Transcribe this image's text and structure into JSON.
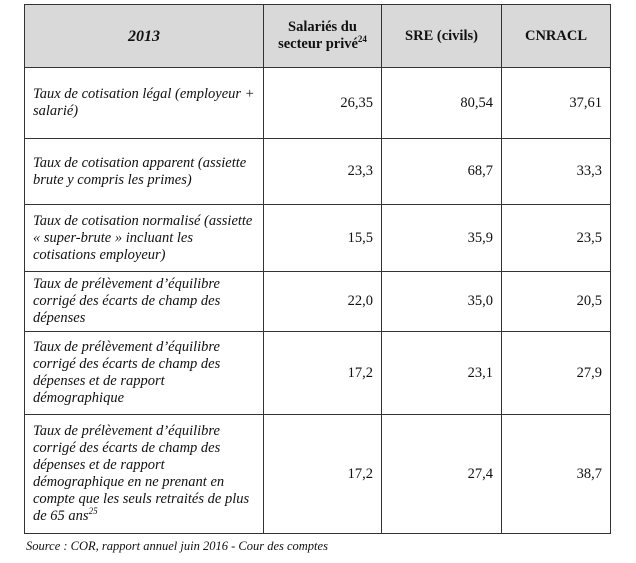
{
  "table": {
    "headers": [
      "2013",
      "Salariés du secteur privé",
      "SRE (civils)",
      "CNRACL"
    ],
    "header_footnote": "24",
    "rows": [
      {
        "label": "Taux de cotisation légal (employeur + salarié)",
        "values": [
          "26,35",
          "80,54",
          "37,61"
        ]
      },
      {
        "label": "Taux de cotisation apparent (assiette brute y compris les primes)",
        "values": [
          "23,3",
          "68,7",
          "33,3"
        ]
      },
      {
        "label": "Taux de cotisation normalisé (assiette « super-brute » incluant les cotisations employeur)",
        "values": [
          "15,5",
          "35,9",
          "23,5"
        ]
      },
      {
        "label": "Taux de prélèvement d’équilibre corrigé des écarts de champ des dépenses",
        "values": [
          "22,0",
          "35,0",
          "20,5"
        ]
      },
      {
        "label": "Taux de prélèvement d’équilibre corrigé des écarts de champ des dépenses et de rapport démographique",
        "values": [
          "17,2",
          "23,1",
          "27,9"
        ]
      },
      {
        "label": "Taux de prélèvement d’équilibre corrigé des écarts de champ des dépenses et de rapport démographique en ne prenant en compte que les seuls retraités de plus de 65 ans",
        "footnote": "25",
        "values": [
          "17,2",
          "27,4",
          "38,7"
        ]
      }
    ]
  },
  "source": "Source : COR, rapport annuel juin 2016 - Cour des comptes"
}
